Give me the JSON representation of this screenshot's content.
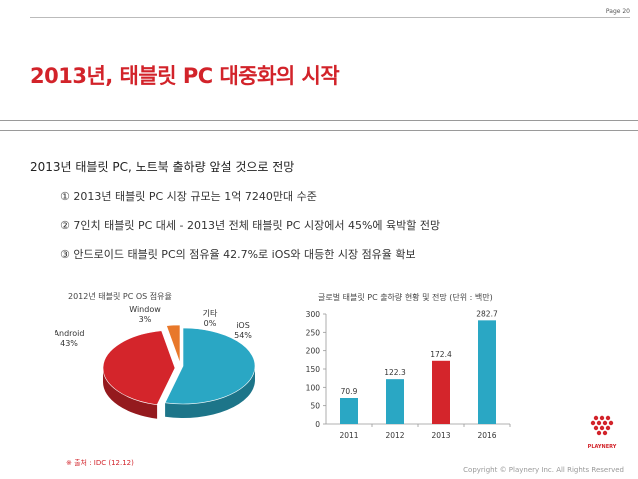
{
  "header": {
    "page_label": "Page 20"
  },
  "title": "2013년, 태블릿 PC 대중화의 시작",
  "subtitle": "2013년 태블릿 PC, 노트북 출하량 앞설 것으로 전망",
  "points": [
    "① 2013년 태블릿 PC 시장 규모는 1억 7240만대 수준",
    "② 7인치 태블릿 PC 대세 - 2013년 전체 태블릿 PC 시장에서 45%에 육박할 전망",
    "③ 안드로이드 태블릿 PC의 점유율 42.7%로 iOS와 대등한 시장 점유율 확보"
  ],
  "chart_data": [
    {
      "type": "pie",
      "title": "2012년 태블릿 PC OS 점유율",
      "slices": [
        {
          "name": "iOS",
          "value": 54,
          "label": "54%",
          "color": "#2aa7c4"
        },
        {
          "name": "Android",
          "value": 43,
          "label": "43%",
          "color": "#d4252b"
        },
        {
          "name": "Window",
          "value": 3,
          "label": "3%",
          "color": "#e8782a"
        },
        {
          "name": "기타",
          "value": 0,
          "label": "0%",
          "color": "#888888"
        }
      ]
    },
    {
      "type": "bar",
      "title": "글로벌 태블릿 PC 출하량 현황 및 전망 (단위 : 백만)",
      "categories": [
        "2011",
        "2012",
        "2013",
        "2016"
      ],
      "values": [
        70.9,
        122.3,
        172.4,
        282.7
      ],
      "value_labels": [
        "70.9",
        "122.3",
        "172.4",
        "282.7"
      ],
      "colors": [
        "#2aa7c4",
        "#2aa7c4",
        "#d4252b",
        "#2aa7c4"
      ],
      "ylim": [
        0,
        300
      ],
      "yticks": [
        "0",
        "50",
        "100",
        "150",
        "200",
        "250",
        "300"
      ],
      "grid": false
    }
  ],
  "source": "※ 출처 : IDC (12.12)",
  "copyright": "Copyright © Playnery Inc. All Rights Reserved",
  "logo": {
    "text": "PLAYNERY",
    "color": "#d2232a"
  }
}
